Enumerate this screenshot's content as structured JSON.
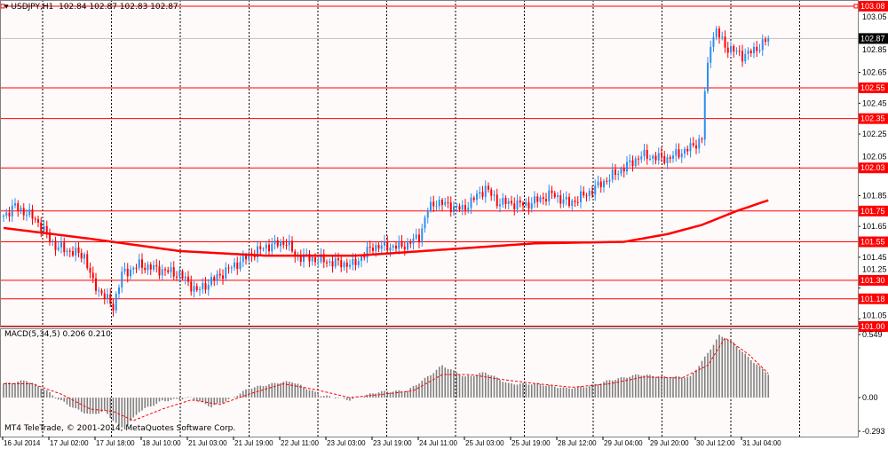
{
  "header": {
    "symbol": "USDJPY,H1",
    "ohlc": "102.84 102.87 102.83 102.87"
  },
  "indicator": {
    "label": "MACD(5,34,5) 0.206 0.210"
  },
  "copyright": "MT4 TeleTrade, © 2001-2014, MetaQuotes Software Corp.",
  "colors": {
    "bull": "#2e8ff0",
    "bear": "#ff0000",
    "level": "#ff0000",
    "ma": "#ff0000",
    "grid": "#000000",
    "bg": "#fffafa"
  },
  "chart_data": {
    "type": "candlestick",
    "title": "USDJPY,H1",
    "current_price": "102.87",
    "price_ticks": [
      "103.05",
      "102.85",
      "102.65",
      "102.45",
      "102.25",
      "102.05",
      "101.85",
      "101.65",
      "101.45",
      "101.25",
      "101.05"
    ],
    "price_range": [
      101.0,
      103.12
    ],
    "levels": [
      "103.08",
      "102.55",
      "102.35",
      "102.03",
      "101.75",
      "101.55",
      "101.30",
      "101.18",
      "101.00"
    ],
    "time_labels": [
      "16 Jul 2014",
      "17 Jul 02:00",
      "17 Jul 18:00",
      "18 Jul 10:00",
      "21 Jul 03:00",
      "21 Jul 19:00",
      "22 Jul 11:00",
      "23 Jul 03:00",
      "23 Jul 19:00",
      "24 Jul 11:00",
      "25 Jul 03:00",
      "25 Jul 19:00",
      "28 Jul 12:00",
      "29 Jul 04:00",
      "29 Jul 20:00",
      "30 Jul 12:00",
      "31 Jul 04:00"
    ],
    "bars": 266,
    "close_path": [
      [
        0,
        101.72
      ],
      [
        4,
        101.78
      ],
      [
        11,
        101.7
      ],
      [
        18,
        101.52
      ],
      [
        28,
        101.46
      ],
      [
        31,
        101.28
      ],
      [
        38,
        101.13
      ],
      [
        41,
        101.34
      ],
      [
        47,
        101.4
      ],
      [
        61,
        101.34
      ],
      [
        67,
        101.23
      ],
      [
        73,
        101.31
      ],
      [
        85,
        101.46
      ],
      [
        91,
        101.52
      ],
      [
        98,
        101.55
      ],
      [
        101,
        101.46
      ],
      [
        113,
        101.42
      ],
      [
        121,
        101.4
      ],
      [
        128,
        101.52
      ],
      [
        138,
        101.52
      ],
      [
        144,
        101.58
      ],
      [
        147,
        101.76
      ],
      [
        150,
        101.81
      ],
      [
        159,
        101.76
      ],
      [
        167,
        101.9
      ],
      [
        171,
        101.81
      ],
      [
        181,
        101.79
      ],
      [
        190,
        101.86
      ],
      [
        196,
        101.8
      ],
      [
        202,
        101.86
      ],
      [
        211,
        101.98
      ],
      [
        221,
        102.11
      ],
      [
        230,
        102.09
      ],
      [
        238,
        102.16
      ],
      [
        242,
        102.22
      ],
      [
        243,
        102.52
      ],
      [
        245,
        102.85
      ],
      [
        247,
        102.92
      ],
      [
        250,
        102.82
      ],
      [
        256,
        102.76
      ],
      [
        260,
        102.79
      ],
      [
        265,
        102.87
      ]
    ],
    "ma_path": [
      [
        0,
        101.64
      ],
      [
        30,
        101.57
      ],
      [
        61,
        101.49
      ],
      [
        91,
        101.46
      ],
      [
        122,
        101.46
      ],
      [
        153,
        101.5
      ],
      [
        184,
        101.54
      ],
      [
        215,
        101.55
      ],
      [
        230,
        101.6
      ],
      [
        242,
        101.66
      ],
      [
        254,
        101.75
      ],
      [
        265,
        101.82
      ]
    ],
    "macd_ticks": [
      "0.549",
      "0.00",
      "-0.293"
    ],
    "macd_range": [
      -0.293,
      0.549
    ],
    "macd_hist": [
      [
        0,
        0.12
      ],
      [
        8,
        0.15
      ],
      [
        15,
        0.06
      ],
      [
        18,
        0.0
      ],
      [
        25,
        -0.1
      ],
      [
        30,
        -0.15
      ],
      [
        35,
        -0.12
      ],
      [
        40,
        -0.25
      ],
      [
        42,
        -0.27
      ],
      [
        47,
        -0.12
      ],
      [
        55,
        -0.03
      ],
      [
        65,
        0.0
      ],
      [
        72,
        -0.08
      ],
      [
        78,
        -0.02
      ],
      [
        85,
        0.08
      ],
      [
        95,
        0.13
      ],
      [
        100,
        0.14
      ],
      [
        110,
        0.02
      ],
      [
        120,
        -0.02
      ],
      [
        130,
        0.05
      ],
      [
        140,
        0.06
      ],
      [
        148,
        0.2
      ],
      [
        152,
        0.28
      ],
      [
        160,
        0.18
      ],
      [
        167,
        0.22
      ],
      [
        175,
        0.12
      ],
      [
        185,
        0.12
      ],
      [
        195,
        0.08
      ],
      [
        203,
        0.1
      ],
      [
        210,
        0.15
      ],
      [
        220,
        0.2
      ],
      [
        230,
        0.18
      ],
      [
        238,
        0.18
      ],
      [
        243,
        0.35
      ],
      [
        248,
        0.54
      ],
      [
        252,
        0.5
      ],
      [
        258,
        0.35
      ],
      [
        265,
        0.206
      ]
    ],
    "macd_signal": [
      [
        0,
        0.12
      ],
      [
        10,
        0.12
      ],
      [
        20,
        0.03
      ],
      [
        30,
        -0.1
      ],
      [
        38,
        -0.12
      ],
      [
        45,
        -0.2
      ],
      [
        55,
        -0.1
      ],
      [
        65,
        -0.02
      ],
      [
        75,
        -0.06
      ],
      [
        85,
        0.03
      ],
      [
        97,
        0.12
      ],
      [
        108,
        0.07
      ],
      [
        120,
        0.0
      ],
      [
        132,
        0.03
      ],
      [
        142,
        0.06
      ],
      [
        152,
        0.2
      ],
      [
        162,
        0.2
      ],
      [
        172,
        0.16
      ],
      [
        185,
        0.12
      ],
      [
        197,
        0.09
      ],
      [
        210,
        0.12
      ],
      [
        222,
        0.18
      ],
      [
        235,
        0.17
      ],
      [
        244,
        0.28
      ],
      [
        250,
        0.52
      ],
      [
        258,
        0.38
      ],
      [
        265,
        0.21
      ]
    ]
  }
}
